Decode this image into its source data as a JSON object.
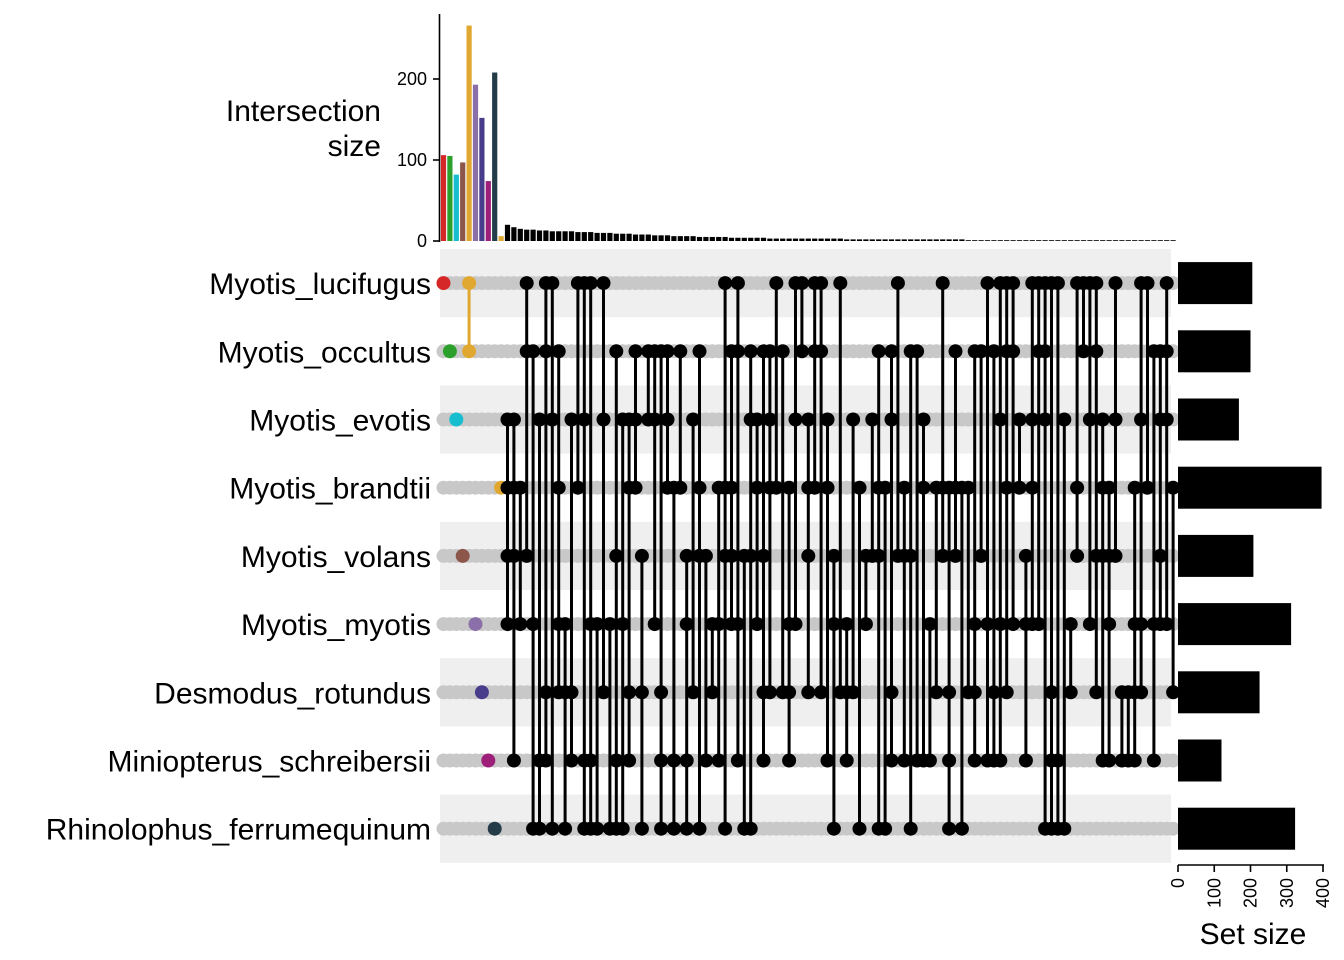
{
  "chart_data": {
    "type": "upset",
    "intersection_axis": {
      "title_line1": "Intersection",
      "title_line2": "size",
      "ticks": [
        0,
        100,
        200
      ],
      "ylim": [
        0,
        280
      ]
    },
    "set_size_axis": {
      "title": "Set size",
      "ticks": [
        0,
        100,
        200,
        300,
        400
      ],
      "xlim": [
        0,
        400
      ]
    },
    "sets": [
      {
        "name": "Myotis_lucifugus",
        "size": 205
      },
      {
        "name": "Myotis_occultus",
        "size": 200
      },
      {
        "name": "Myotis_evotis",
        "size": 168
      },
      {
        "name": "Myotis_brandtii",
        "size": 396
      },
      {
        "name": "Myotis_volans",
        "size": 208
      },
      {
        "name": "Myotis_myotis",
        "size": 312
      },
      {
        "name": "Desmodus_rotundus",
        "size": 225
      },
      {
        "name": "Miniopterus_schreibersii",
        "size": 120
      },
      {
        "name": "Rhinolophus_ferrumequinum",
        "size": 323
      }
    ],
    "highlighted_intersections": [
      {
        "sets": [
          "Myotis_lucifugus"
        ],
        "size": 106,
        "color": "#D62728"
      },
      {
        "sets": [
          "Myotis_occultus"
        ],
        "size": 105,
        "color": "#2CA02C"
      },
      {
        "sets": [
          "Myotis_evotis"
        ],
        "size": 82,
        "color": "#17BECF"
      },
      {
        "sets": [
          "Myotis_volans"
        ],
        "size": 97,
        "color": "#8C564B"
      },
      {
        "sets": [
          "Myotis_lucifugus",
          "Myotis_occultus"
        ],
        "size": 266,
        "color": "#E0A830"
      },
      {
        "sets": [
          "Myotis_myotis"
        ],
        "size": 193,
        "color": "#8B6FA8"
      },
      {
        "sets": [
          "Desmodus_rotundus"
        ],
        "size": 152,
        "color": "#483D8B"
      },
      {
        "sets": [
          "Miniopterus_schreibersii"
        ],
        "size": 74,
        "color": "#9E1F7A"
      },
      {
        "sets": [
          "Rhinolophus_ferrumequinum"
        ],
        "size": 208,
        "color": "#243C48"
      },
      {
        "sets": [
          "Myotis_brandtii"
        ],
        "size": 6,
        "color": "#E0A830"
      }
    ],
    "other_intersections_sizes": [
      20,
      17,
      15,
      14,
      14,
      13,
      13,
      12,
      12,
      12,
      12,
      11,
      11,
      11,
      10,
      10,
      10,
      9,
      9,
      9,
      8,
      8,
      8,
      7,
      7,
      7,
      6,
      6,
      6,
      6,
      5,
      5,
      5,
      5,
      5,
      4,
      4,
      4,
      4,
      4,
      4,
      3,
      3,
      3,
      3,
      3,
      3,
      3,
      3,
      3,
      3,
      3,
      3,
      2,
      2,
      2,
      2,
      2,
      2,
      2,
      2,
      2,
      2,
      2,
      2,
      2,
      2,
      2,
      2,
      2,
      2,
      2,
      1,
      1,
      1,
      1,
      1,
      1,
      1,
      1,
      1,
      1,
      1,
      1,
      1,
      1,
      1,
      1,
      1,
      1,
      1,
      1,
      1,
      1,
      1,
      1,
      1,
      1,
      1,
      1,
      1,
      1,
      1,
      1,
      1
    ],
    "other_intersections_color": "#000000",
    "inactive_dot_color": "#C8C8C8",
    "stripe_color": "#EFEFEF"
  }
}
